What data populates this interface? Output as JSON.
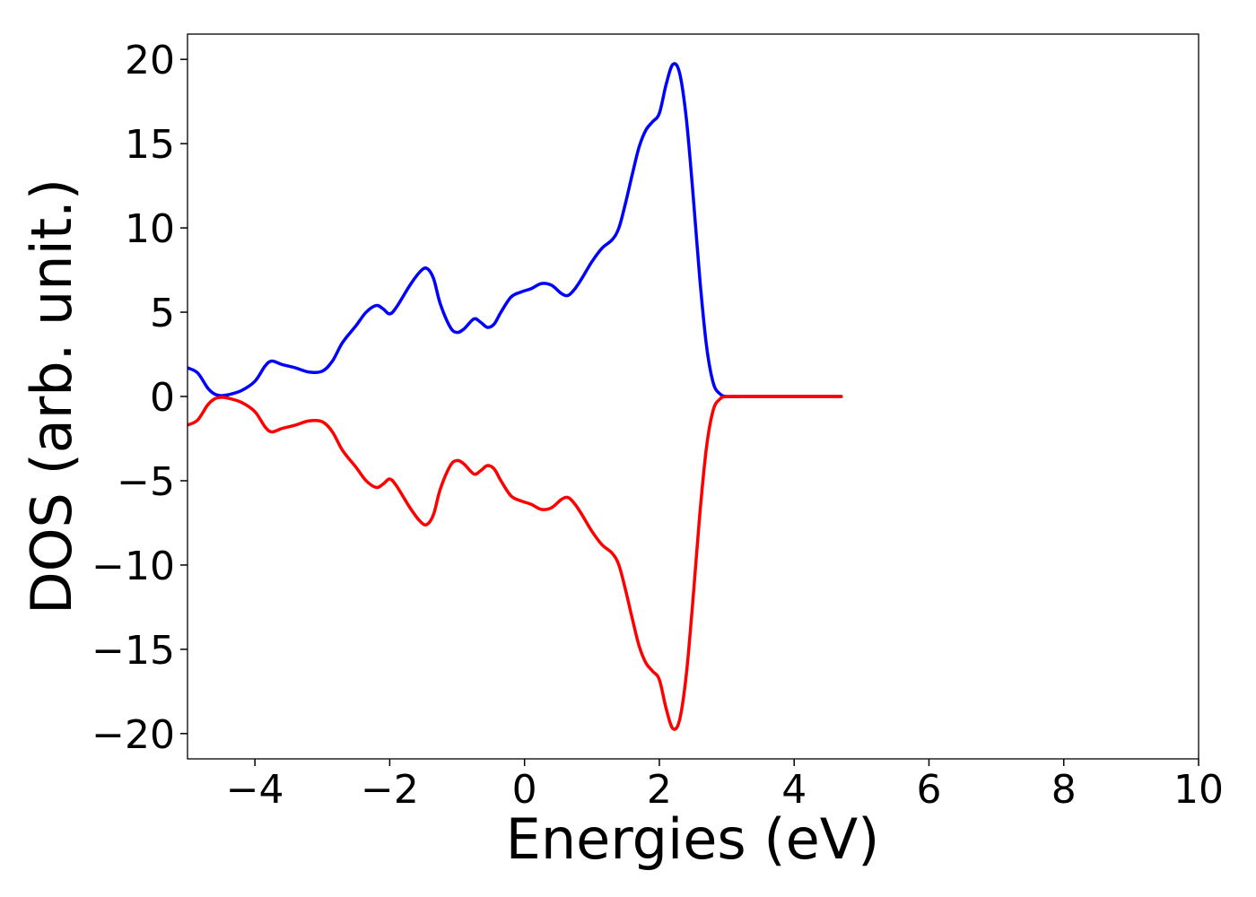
{
  "chart_data": {
    "type": "line",
    "title": "",
    "xlabel": "Energies (eV)",
    "ylabel": "DOS (arb. unit.)",
    "xlim": [
      -5,
      10
    ],
    "ylim": [
      -21.5,
      21.5
    ],
    "xticks": [
      -4,
      -2,
      0,
      2,
      4,
      6,
      8,
      10
    ],
    "yticks": [
      -20,
      -15,
      -10,
      -5,
      0,
      5,
      10,
      15,
      20
    ],
    "xtick_labels": [
      "−4",
      "−2",
      "0",
      "2",
      "4",
      "6",
      "8",
      "10"
    ],
    "ytick_labels": [
      "−20",
      "−15",
      "−10",
      "−5",
      "0",
      "5",
      "10",
      "15",
      "20"
    ],
    "grid": false,
    "legend": "none",
    "series": [
      {
        "color": "#0000ff",
        "x": [
          -5.0,
          -4.85,
          -4.7,
          -4.6,
          -4.5,
          -4.4,
          -4.2,
          -4.0,
          -3.85,
          -3.75,
          -3.6,
          -3.4,
          -3.2,
          -3.0,
          -2.85,
          -2.7,
          -2.5,
          -2.35,
          -2.2,
          -2.1,
          -2.0,
          -1.9,
          -1.7,
          -1.55,
          -1.45,
          -1.35,
          -1.25,
          -1.1,
          -1.0,
          -0.9,
          -0.75,
          -0.65,
          -0.55,
          -0.45,
          -0.35,
          -0.2,
          -0.05,
          0.1,
          0.25,
          0.4,
          0.55,
          0.65,
          0.75,
          0.85,
          1.0,
          1.15,
          1.3,
          1.4,
          1.5,
          1.6,
          1.7,
          1.8,
          1.9,
          2.0,
          2.1,
          2.2,
          2.3,
          2.4,
          2.5,
          2.6,
          2.7,
          2.8,
          2.9,
          3.0,
          3.2,
          3.5,
          4.0,
          4.7
        ],
        "y": [
          1.7,
          1.4,
          0.5,
          0.15,
          0.05,
          0.1,
          0.35,
          0.9,
          1.8,
          2.1,
          1.9,
          1.7,
          1.45,
          1.5,
          2.1,
          3.2,
          4.2,
          5.0,
          5.4,
          5.2,
          4.9,
          5.3,
          6.6,
          7.4,
          7.6,
          7.0,
          5.5,
          4.1,
          3.8,
          4.0,
          4.6,
          4.4,
          4.1,
          4.3,
          5.0,
          5.9,
          6.2,
          6.4,
          6.7,
          6.6,
          6.1,
          6.0,
          6.4,
          7.0,
          8.0,
          8.8,
          9.3,
          10.0,
          11.5,
          13.2,
          14.8,
          15.8,
          16.3,
          16.8,
          18.5,
          19.7,
          19.2,
          16.5,
          12.0,
          7.0,
          3.0,
          0.8,
          0.15,
          0.0,
          0.0,
          0.0,
          0.0,
          0.0
        ]
      },
      {
        "color": "#ff0000",
        "x": [
          -5.0,
          -4.85,
          -4.7,
          -4.6,
          -4.5,
          -4.4,
          -4.2,
          -4.0,
          -3.85,
          -3.75,
          -3.6,
          -3.4,
          -3.2,
          -3.0,
          -2.85,
          -2.7,
          -2.5,
          -2.35,
          -2.2,
          -2.1,
          -2.0,
          -1.9,
          -1.7,
          -1.55,
          -1.45,
          -1.35,
          -1.25,
          -1.1,
          -1.0,
          -0.9,
          -0.75,
          -0.65,
          -0.55,
          -0.45,
          -0.35,
          -0.2,
          -0.05,
          0.1,
          0.25,
          0.4,
          0.55,
          0.65,
          0.75,
          0.85,
          1.0,
          1.15,
          1.3,
          1.4,
          1.5,
          1.6,
          1.7,
          1.8,
          1.9,
          2.0,
          2.1,
          2.2,
          2.3,
          2.4,
          2.5,
          2.6,
          2.7,
          2.8,
          2.9,
          3.0,
          3.2,
          3.5,
          4.0,
          4.7
        ],
        "y": [
          -1.7,
          -1.4,
          -0.5,
          -0.15,
          -0.05,
          -0.1,
          -0.35,
          -0.9,
          -1.8,
          -2.1,
          -1.9,
          -1.7,
          -1.45,
          -1.5,
          -2.1,
          -3.2,
          -4.2,
          -5.0,
          -5.4,
          -5.2,
          -4.9,
          -5.3,
          -6.6,
          -7.4,
          -7.6,
          -7.0,
          -5.5,
          -4.1,
          -3.8,
          -4.0,
          -4.6,
          -4.4,
          -4.1,
          -4.3,
          -5.0,
          -5.9,
          -6.2,
          -6.4,
          -6.7,
          -6.6,
          -6.1,
          -6.0,
          -6.4,
          -7.0,
          -8.0,
          -8.8,
          -9.3,
          -10.0,
          -11.5,
          -13.2,
          -14.8,
          -15.8,
          -16.3,
          -16.8,
          -18.5,
          -19.7,
          -19.2,
          -16.5,
          -12.0,
          -7.0,
          -3.0,
          -0.8,
          -0.15,
          0.0,
          0.0,
          0.0,
          0.0,
          0.0
        ]
      }
    ]
  }
}
